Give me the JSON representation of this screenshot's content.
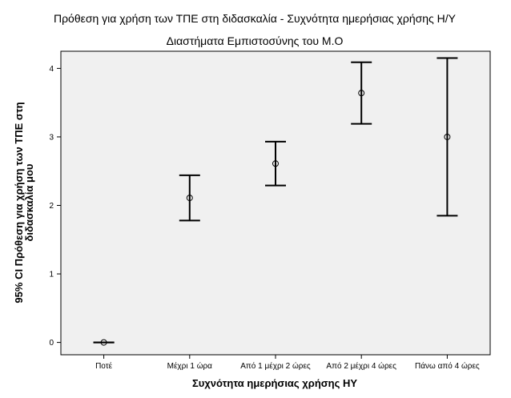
{
  "chart_data": {
    "type": "errorbar",
    "title": "Πρόθεση για χρήση των ΤΠΕ στη διδασκαλία - Συχνότητα ημερήσιας χρήσης Η/Υ",
    "subtitle": "Διαστήματα Εμπιστοσύνης του Μ.Ο",
    "xlabel": "Συχνότητα ημερήσιας χρήσης ΗΥ",
    "ylabel_lines": [
      "95% CI Πρόθεση για χρήση των ΤΠΕ στη",
      "διδασκαλία μου"
    ],
    "categories": [
      "Ποτέ",
      "Μέχρι 1 ώρα",
      "Από 1 μέχρι 2 ώρες",
      "Από 2 μέχρι 4 ώρες",
      "Πάνω από 4 ώρες"
    ],
    "mean": [
      0.0,
      2.11,
      2.61,
      3.64,
      3.0
    ],
    "lower": [
      0.0,
      1.78,
      2.29,
      3.19,
      1.85
    ],
    "upper": [
      0.0,
      2.44,
      2.93,
      4.09,
      4.15
    ],
    "ylim": [
      -0.18,
      4.25
    ],
    "yticks": [
      "0",
      "1",
      "2",
      "3",
      "4"
    ],
    "grid": false,
    "colors": {
      "plot_bg": "#f0f0f0",
      "marks": "#000000",
      "axis": "#000000"
    }
  }
}
